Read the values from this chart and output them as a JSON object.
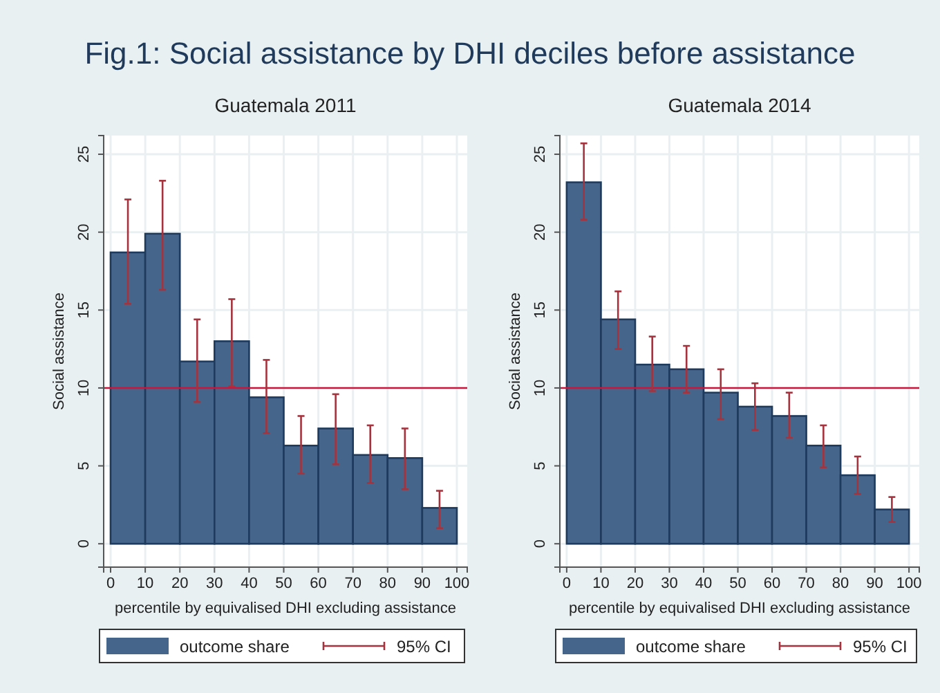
{
  "chart_data": [
    {
      "type": "histogram",
      "title": "Fig.1: Social assistance by DHI deciles before assistance",
      "subtitle": "Guatemala 2011",
      "xlabel": "percentile by equivalised DHI excluding assistance",
      "ylabel": "Social assistance",
      "bins": [
        0,
        10,
        20,
        30,
        40,
        50,
        60,
        70,
        80,
        90,
        100
      ],
      "series": [
        {
          "name": "outcome share",
          "color": "#46658a",
          "values": [
            18.7,
            19.9,
            11.7,
            13.0,
            9.4,
            6.3,
            7.4,
            5.7,
            5.5,
            2.3
          ],
          "errors": [
            [
              15.4,
              22.1
            ],
            [
              16.3,
              23.3
            ],
            [
              9.1,
              14.4
            ],
            [
              10.1,
              15.7
            ],
            [
              7.1,
              11.8
            ],
            [
              4.5,
              8.2
            ],
            [
              5.1,
              9.6
            ],
            [
              3.9,
              7.6
            ],
            [
              3.5,
              7.4
            ],
            [
              1.0,
              3.4
            ]
          ]
        }
      ],
      "annotations": [
        "95% CI"
      ],
      "ref_lines": [
        {
          "axis": "y",
          "value": 10,
          "color": "#c8163c"
        }
      ],
      "xlim": [
        -2,
        103
      ],
      "xticks": [
        0,
        10,
        20,
        30,
        40,
        50,
        60,
        70,
        80,
        90,
        100
      ],
      "ylim": [
        -1.5,
        26.2
      ],
      "yticks": [
        0,
        5,
        10,
        15,
        20,
        25
      ],
      "grid": true,
      "legend": "bottom"
    },
    {
      "type": "histogram",
      "title": "Guatemala 2014",
      "xlabel": "percentile by equivalised DHI excluding assistance",
      "ylabel": "Social assistance",
      "bins": [
        0,
        10,
        20,
        30,
        40,
        50,
        60,
        70,
        80,
        90,
        100
      ],
      "series": [
        {
          "name": "outcome share",
          "color": "#46658a",
          "values": [
            23.2,
            14.4,
            11.5,
            11.2,
            9.7,
            8.8,
            8.2,
            6.3,
            4.4,
            2.2
          ],
          "errors": [
            [
              20.8,
              25.7
            ],
            [
              12.5,
              16.2
            ],
            [
              9.8,
              13.3
            ],
            [
              9.7,
              12.7
            ],
            [
              8.0,
              11.2
            ],
            [
              7.3,
              10.3
            ],
            [
              6.8,
              9.7
            ],
            [
              4.9,
              7.6
            ],
            [
              3.2,
              5.6
            ],
            [
              1.4,
              3.0
            ]
          ]
        }
      ],
      "annotations": [
        "95% CI"
      ],
      "ref_lines": [
        {
          "axis": "y",
          "value": 10,
          "color": "#c8163c"
        }
      ],
      "xlim": [
        -2,
        103
      ],
      "xticks": [
        0,
        10,
        20,
        30,
        40,
        50,
        60,
        70,
        80,
        90,
        100
      ],
      "ylim": [
        -1.5,
        26.2
      ],
      "yticks": [
        0,
        5,
        10,
        15,
        20,
        25
      ],
      "grid": true,
      "legend": "bottom"
    }
  ]
}
